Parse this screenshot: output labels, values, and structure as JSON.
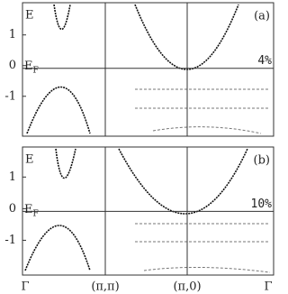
{
  "chart_data": [
    {
      "type": "band-structure",
      "y_label": "E",
      "ef_label": "E",
      "ef_subscript": "F",
      "panel_label": "(a)",
      "annotation": "4%",
      "ylim": [
        -2.3,
        2.05
      ],
      "yticks": [
        -1,
        0,
        1
      ]
    },
    {
      "type": "band-structure",
      "y_label": "E",
      "ef_label": "E",
      "ef_subscript": "F",
      "panel_label": "(b)",
      "annotation": "10%",
      "ylim": [
        -2.1,
        1.95
      ],
      "yticks": [
        -1,
        0,
        1
      ],
      "categories": [
        "Γ",
        "(π,π)",
        "(π,0)",
        "Γ"
      ]
    }
  ]
}
